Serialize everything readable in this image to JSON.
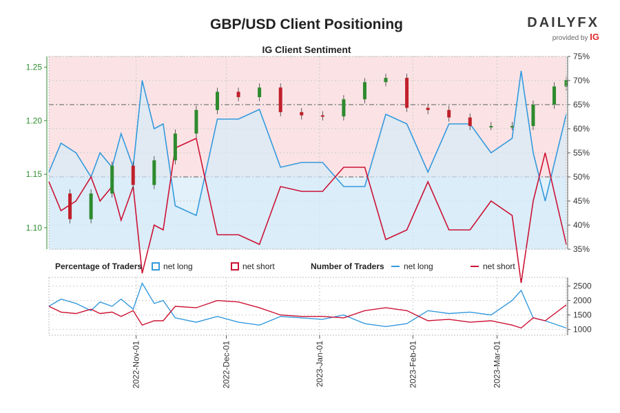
{
  "title": "GBP/USD Client Positioning",
  "subtitle": "IG Client Sentiment",
  "brand": {
    "name": "DAILYFX",
    "provided_by": "provided by",
    "ig": "IG"
  },
  "colors": {
    "net_long": "#3399dd",
    "net_short": "#cc1133",
    "long_fill": "#e3f1fa",
    "short_fill": "#fbe3e5",
    "candle_up": "#2e8b2e",
    "candle_down": "#c0202a",
    "price_axis": "#2e8b2e"
  },
  "legend": {
    "pct_label": "Percentage of Traders",
    "pct_long": "net long",
    "pct_short": "net short",
    "num_label": "Number of Traders",
    "num_long": "net long",
    "num_short": "net short"
  },
  "chart_data": {
    "type": "line",
    "title": "GBP/USD Client Positioning",
    "subtitle": "IG Client Sentiment",
    "x_tick_labels": [
      "2022-Nov-01",
      "2022-Dec-01",
      "2023-Jan-01",
      "2023-Feb-01",
      "2023-Mar-01"
    ],
    "x_start": "2022-10-03",
    "x_end": "2023-03-24",
    "price_axis": {
      "ticks": [
        1.1,
        1.15,
        1.2,
        1.25
      ],
      "tick_labels": [
        "1.10",
        "1.15",
        "1.20",
        "1.25"
      ],
      "ylim": [
        1.08,
        1.26
      ]
    },
    "pct_axis": {
      "ticks": [
        35,
        40,
        45,
        50,
        55,
        60,
        65,
        70,
        75
      ],
      "tick_labels": [
        "35%",
        "40%",
        "45%",
        "50%",
        "55%",
        "60%",
        "65%",
        "70%",
        "75%"
      ],
      "ylim": [
        35,
        75
      ],
      "reference_lines": [
        50,
        65
      ]
    },
    "count_axis": {
      "ticks": [
        1000,
        1500,
        2000,
        2500
      ],
      "tick_labels": [
        "1000",
        "1500",
        "2000",
        "2500"
      ],
      "ylim": [
        800,
        2800
      ]
    },
    "price_close": [
      {
        "date": "2022-10-03",
        "close": 1.132
      },
      {
        "date": "2022-10-10",
        "close": 1.108
      },
      {
        "date": "2022-10-17",
        "close": 1.132
      },
      {
        "date": "2022-10-24",
        "close": 1.158
      },
      {
        "date": "2022-10-31",
        "close": 1.14
      },
      {
        "date": "2022-11-07",
        "close": 1.163
      },
      {
        "date": "2022-11-14",
        "close": 1.188
      },
      {
        "date": "2022-11-21",
        "close": 1.21
      },
      {
        "date": "2022-11-28",
        "close": 1.227
      },
      {
        "date": "2022-12-05",
        "close": 1.222
      },
      {
        "date": "2022-12-12",
        "close": 1.231
      },
      {
        "date": "2022-12-19",
        "close": 1.208
      },
      {
        "date": "2022-12-26",
        "close": 1.205
      },
      {
        "date": "2023-01-02",
        "close": 1.204
      },
      {
        "date": "2023-01-09",
        "close": 1.22
      },
      {
        "date": "2023-01-16",
        "close": 1.236
      },
      {
        "date": "2023-01-23",
        "close": 1.24
      },
      {
        "date": "2023-01-30",
        "close": 1.212
      },
      {
        "date": "2023-02-06",
        "close": 1.21
      },
      {
        "date": "2023-02-13",
        "close": 1.203
      },
      {
        "date": "2023-02-20",
        "close": 1.195
      },
      {
        "date": "2023-02-27",
        "close": 1.195
      },
      {
        "date": "2023-03-06",
        "close": 1.195
      },
      {
        "date": "2023-03-13",
        "close": 1.215
      },
      {
        "date": "2023-03-20",
        "close": 1.232
      },
      {
        "date": "2023-03-24",
        "close": 1.238
      }
    ],
    "series": [
      {
        "name": "net long",
        "unit": "percent",
        "points": [
          {
            "date": "2022-10-03",
            "value": 51
          },
          {
            "date": "2022-10-07",
            "value": 57
          },
          {
            "date": "2022-10-12",
            "value": 55
          },
          {
            "date": "2022-10-17",
            "value": 50
          },
          {
            "date": "2022-10-20",
            "value": 55
          },
          {
            "date": "2022-10-24",
            "value": 52
          },
          {
            "date": "2022-10-27",
            "value": 59
          },
          {
            "date": "2022-10-31",
            "value": 52
          },
          {
            "date": "2022-11-03",
            "value": 70
          },
          {
            "date": "2022-11-07",
            "value": 60
          },
          {
            "date": "2022-11-10",
            "value": 61
          },
          {
            "date": "2022-11-14",
            "value": 44
          },
          {
            "date": "2022-11-21",
            "value": 42
          },
          {
            "date": "2022-11-28",
            "value": 62
          },
          {
            "date": "2022-12-05",
            "value": 62
          },
          {
            "date": "2022-12-12",
            "value": 64
          },
          {
            "date": "2022-12-19",
            "value": 52
          },
          {
            "date": "2022-12-26",
            "value": 53
          },
          {
            "date": "2023-01-02",
            "value": 53
          },
          {
            "date": "2023-01-09",
            "value": 48
          },
          {
            "date": "2023-01-16",
            "value": 48
          },
          {
            "date": "2023-01-23",
            "value": 63
          },
          {
            "date": "2023-01-30",
            "value": 61
          },
          {
            "date": "2023-02-06",
            "value": 51
          },
          {
            "date": "2023-02-13",
            "value": 61
          },
          {
            "date": "2023-02-20",
            "value": 61
          },
          {
            "date": "2023-02-27",
            "value": 55
          },
          {
            "date": "2023-03-06",
            "value": 58
          },
          {
            "date": "2023-03-09",
            "value": 72
          },
          {
            "date": "2023-03-13",
            "value": 55
          },
          {
            "date": "2023-03-17",
            "value": 45
          },
          {
            "date": "2023-03-24",
            "value": 63
          }
        ]
      },
      {
        "name": "net short",
        "unit": "percent",
        "points": [
          {
            "date": "2022-10-03",
            "value": 49
          },
          {
            "date": "2022-10-07",
            "value": 43
          },
          {
            "date": "2022-10-12",
            "value": 45
          },
          {
            "date": "2022-10-17",
            "value": 50
          },
          {
            "date": "2022-10-20",
            "value": 45
          },
          {
            "date": "2022-10-24",
            "value": 48
          },
          {
            "date": "2022-10-27",
            "value": 41
          },
          {
            "date": "2022-10-31",
            "value": 48
          },
          {
            "date": "2022-11-03",
            "value": 30
          },
          {
            "date": "2022-11-07",
            "value": 40
          },
          {
            "date": "2022-11-10",
            "value": 39
          },
          {
            "date": "2022-11-14",
            "value": 56
          },
          {
            "date": "2022-11-21",
            "value": 58
          },
          {
            "date": "2022-11-28",
            "value": 38
          },
          {
            "date": "2022-12-05",
            "value": 38
          },
          {
            "date": "2022-12-12",
            "value": 36
          },
          {
            "date": "2022-12-19",
            "value": 48
          },
          {
            "date": "2022-12-26",
            "value": 47
          },
          {
            "date": "2023-01-02",
            "value": 47
          },
          {
            "date": "2023-01-09",
            "value": 52
          },
          {
            "date": "2023-01-16",
            "value": 52
          },
          {
            "date": "2023-01-23",
            "value": 37
          },
          {
            "date": "2023-01-30",
            "value": 39
          },
          {
            "date": "2023-02-06",
            "value": 49
          },
          {
            "date": "2023-02-13",
            "value": 39
          },
          {
            "date": "2023-02-20",
            "value": 39
          },
          {
            "date": "2023-02-27",
            "value": 45
          },
          {
            "date": "2023-03-06",
            "value": 42
          },
          {
            "date": "2023-03-09",
            "value": 28
          },
          {
            "date": "2023-03-13",
            "value": 45
          },
          {
            "date": "2023-03-17",
            "value": 55
          },
          {
            "date": "2023-03-24",
            "value": 36
          }
        ]
      },
      {
        "name": "net long",
        "unit": "traders",
        "points": [
          {
            "date": "2022-10-03",
            "value": 1800
          },
          {
            "date": "2022-10-07",
            "value": 2050
          },
          {
            "date": "2022-10-12",
            "value": 1900
          },
          {
            "date": "2022-10-17",
            "value": 1650
          },
          {
            "date": "2022-10-20",
            "value": 1950
          },
          {
            "date": "2022-10-24",
            "value": 1800
          },
          {
            "date": "2022-10-27",
            "value": 2050
          },
          {
            "date": "2022-10-31",
            "value": 1700
          },
          {
            "date": "2022-11-03",
            "value": 2600
          },
          {
            "date": "2022-11-07",
            "value": 1900
          },
          {
            "date": "2022-11-10",
            "value": 2000
          },
          {
            "date": "2022-11-14",
            "value": 1400
          },
          {
            "date": "2022-11-21",
            "value": 1250
          },
          {
            "date": "2022-11-28",
            "value": 1450
          },
          {
            "date": "2022-12-05",
            "value": 1250
          },
          {
            "date": "2022-12-12",
            "value": 1150
          },
          {
            "date": "2022-12-19",
            "value": 1450
          },
          {
            "date": "2022-12-26",
            "value": 1400
          },
          {
            "date": "2023-01-02",
            "value": 1350
          },
          {
            "date": "2023-01-09",
            "value": 1500
          },
          {
            "date": "2023-01-16",
            "value": 1200
          },
          {
            "date": "2023-01-23",
            "value": 1100
          },
          {
            "date": "2023-01-30",
            "value": 1200
          },
          {
            "date": "2023-02-06",
            "value": 1650
          },
          {
            "date": "2023-02-13",
            "value": 1550
          },
          {
            "date": "2023-02-20",
            "value": 1600
          },
          {
            "date": "2023-02-27",
            "value": 1500
          },
          {
            "date": "2023-03-06",
            "value": 2000
          },
          {
            "date": "2023-03-09",
            "value": 2350
          },
          {
            "date": "2023-03-13",
            "value": 1400
          },
          {
            "date": "2023-03-17",
            "value": 1300
          },
          {
            "date": "2023-03-24",
            "value": 1050
          }
        ]
      },
      {
        "name": "net short",
        "unit": "traders",
        "points": [
          {
            "date": "2022-10-03",
            "value": 1800
          },
          {
            "date": "2022-10-07",
            "value": 1600
          },
          {
            "date": "2022-10-12",
            "value": 1550
          },
          {
            "date": "2022-10-17",
            "value": 1700
          },
          {
            "date": "2022-10-20",
            "value": 1550
          },
          {
            "date": "2022-10-24",
            "value": 1600
          },
          {
            "date": "2022-10-27",
            "value": 1450
          },
          {
            "date": "2022-10-31",
            "value": 1650
          },
          {
            "date": "2022-11-03",
            "value": 1150
          },
          {
            "date": "2022-11-07",
            "value": 1300
          },
          {
            "date": "2022-11-10",
            "value": 1300
          },
          {
            "date": "2022-11-14",
            "value": 1800
          },
          {
            "date": "2022-11-21",
            "value": 1750
          },
          {
            "date": "2022-11-28",
            "value": 2000
          },
          {
            "date": "2022-12-05",
            "value": 1950
          },
          {
            "date": "2022-12-12",
            "value": 1750
          },
          {
            "date": "2022-12-19",
            "value": 1500
          },
          {
            "date": "2022-12-26",
            "value": 1450
          },
          {
            "date": "2023-01-02",
            "value": 1450
          },
          {
            "date": "2023-01-09",
            "value": 1400
          },
          {
            "date": "2023-01-16",
            "value": 1650
          },
          {
            "date": "2023-01-23",
            "value": 1750
          },
          {
            "date": "2023-01-30",
            "value": 1650
          },
          {
            "date": "2023-02-06",
            "value": 1300
          },
          {
            "date": "2023-02-13",
            "value": 1350
          },
          {
            "date": "2023-02-20",
            "value": 1250
          },
          {
            "date": "2023-02-27",
            "value": 1300
          },
          {
            "date": "2023-03-06",
            "value": 1150
          },
          {
            "date": "2023-03-09",
            "value": 1050
          },
          {
            "date": "2023-03-13",
            "value": 1400
          },
          {
            "date": "2023-03-17",
            "value": 1300
          },
          {
            "date": "2023-03-24",
            "value": 1850
          }
        ]
      }
    ],
    "grid": true
  }
}
